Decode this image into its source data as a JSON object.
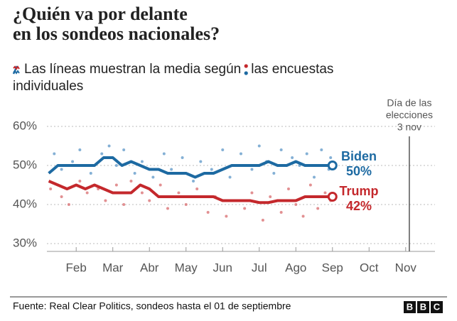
{
  "chart_data": {
    "type": "line",
    "title": [
      "¿Quién va por delante",
      "en los sondeos nacionales?"
    ],
    "subtitle": [
      "Las líneas muestran la media según",
      "las encuestas",
      "individuales"
    ],
    "source": "Fuente: Real Clear Politics, sondeos hasta el 01 de septiembre",
    "logo": [
      "B",
      "B",
      "C"
    ],
    "xlim": [
      1.2,
      11.8
    ],
    "xticks": [
      {
        "value": 2,
        "label": "Feb"
      },
      {
        "value": 3,
        "label": "Mar"
      },
      {
        "value": 4,
        "label": "Abr"
      },
      {
        "value": 5,
        "label": "May"
      },
      {
        "value": 6,
        "label": "Jun"
      },
      {
        "value": 7,
        "label": "Jul"
      },
      {
        "value": 8,
        "label": "Ago"
      },
      {
        "value": 9,
        "label": "Sep"
      },
      {
        "value": 10,
        "label": "Oct"
      },
      {
        "value": 11,
        "label": "Nov"
      }
    ],
    "ylim": [
      28,
      60
    ],
    "yticks": [
      {
        "value": 30,
        "label": "30%"
      },
      {
        "value": 40,
        "label": "40%"
      },
      {
        "value": 50,
        "label": "50%"
      },
      {
        "value": 60,
        "label": "60%"
      }
    ],
    "grid": true,
    "annotation": {
      "x": 11.1,
      "text": [
        "Día de las",
        "elecciones",
        "3 nov"
      ]
    },
    "x": [
      1.25,
      1.5,
      1.75,
      2,
      2.25,
      2.5,
      2.75,
      3,
      3.25,
      3.5,
      3.75,
      4,
      4.25,
      4.5,
      4.75,
      5,
      5.25,
      5.5,
      5.75,
      6,
      6.25,
      6.5,
      6.75,
      7,
      7.25,
      7.5,
      7.75,
      8,
      8.25,
      8.5,
      8.75,
      9
    ],
    "series": [
      {
        "name": "Biden",
        "color": "#1d6aa2",
        "values": [
          48,
          50,
          50,
          50,
          50,
          50,
          52,
          52,
          50,
          51,
          50,
          49,
          49,
          48,
          48,
          48,
          47,
          48,
          48,
          49,
          50,
          50,
          50,
          50,
          51,
          50,
          50,
          51,
          50,
          50,
          50,
          50
        ],
        "value_labels": [
          null,
          null,
          null,
          null,
          null,
          null,
          null,
          null,
          null,
          null,
          null,
          null,
          null,
          null,
          null,
          null,
          null,
          null,
          null,
          null,
          null,
          null,
          null,
          null,
          null,
          null,
          null,
          null,
          null,
          null,
          null,
          "50%"
        ]
      },
      {
        "name": "Trump",
        "color": "#c4282c",
        "values": [
          46,
          45,
          44,
          45,
          44,
          45,
          44,
          43,
          43,
          43,
          45,
          44,
          42,
          42,
          42,
          42,
          42,
          42,
          42,
          41,
          41,
          41,
          41,
          40.5,
          40.5,
          41,
          41,
          41,
          42,
          42,
          42,
          42
        ],
        "value_labels": [
          null,
          null,
          null,
          null,
          null,
          null,
          null,
          null,
          null,
          null,
          null,
          null,
          null,
          null,
          null,
          null,
          null,
          null,
          null,
          null,
          null,
          null,
          null,
          null,
          null,
          null,
          null,
          null,
          null,
          null,
          null,
          "42%"
        ]
      }
    ],
    "polls": [
      {
        "color": "#5b95c7",
        "x": [
          1.4,
          1.6,
          1.9,
          2.1,
          2.4,
          2.7,
          2.9,
          3.1,
          3.3,
          3.6,
          3.8,
          4.1,
          4.4,
          4.6,
          4.9,
          5.2,
          5.4,
          5.7,
          6.0,
          6.2,
          6.5,
          6.8,
          7.0,
          7.2,
          7.4,
          7.6,
          7.9,
          8.1,
          8.3,
          8.5,
          8.7,
          8.9,
          8.95
        ],
        "values": [
          53,
          49,
          51,
          54,
          48,
          53,
          55,
          50,
          54,
          48,
          51,
          47,
          53,
          49,
          52,
          46,
          51,
          49,
          54,
          47,
          53,
          49,
          55,
          51,
          48,
          54,
          52,
          50,
          53,
          47,
          54,
          49,
          52
        ]
      },
      {
        "color": "#d86b6e",
        "x": [
          1.3,
          1.6,
          1.8,
          2.1,
          2.3,
          2.6,
          2.8,
          3.1,
          3.3,
          3.5,
          3.8,
          4.0,
          4.3,
          4.5,
          4.8,
          5.0,
          5.3,
          5.6,
          5.8,
          6.1,
          6.3,
          6.6,
          6.8,
          7.1,
          7.3,
          7.6,
          7.8,
          8.0,
          8.2,
          8.4,
          8.6,
          8.8,
          8.95
        ],
        "values": [
          44,
          42,
          40,
          46,
          43,
          44,
          41,
          45,
          40,
          46,
          43,
          41,
          45,
          39,
          43,
          40,
          44,
          38,
          42,
          37,
          41,
          39,
          43,
          36,
          42,
          38,
          44,
          40,
          37,
          45,
          39,
          43,
          41
        ]
      }
    ]
  }
}
